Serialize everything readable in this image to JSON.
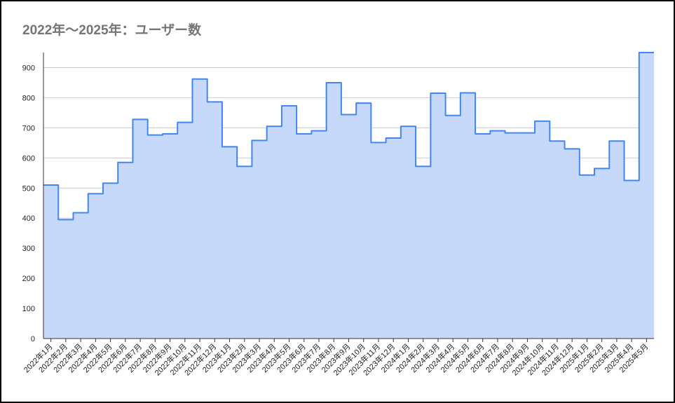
{
  "chart_data": {
    "type": "area",
    "step": "center",
    "title": "2022年～2025年：ユーザー数",
    "xlabel": "",
    "ylabel": "",
    "ylim": [
      0,
      950
    ],
    "yticks": [
      0,
      100,
      200,
      300,
      400,
      500,
      600,
      700,
      800,
      900
    ],
    "grid": true,
    "legend": "none",
    "colors": {
      "line": "#4285f4",
      "fill": "#c6d9fb",
      "grid": "#cccccc",
      "axis": "#333333"
    },
    "categories": [
      "2022年1月",
      "2022年2月",
      "2022年3月",
      "2022年4月",
      "2022年5月",
      "2022年6月",
      "2022年7月",
      "2022年8月",
      "2022年9月",
      "2022年10月",
      "2022年11月",
      "2022年12月",
      "2023年1月",
      "2023年2月",
      "2023年3月",
      "2023年4月",
      "2023年5月",
      "2023年6月",
      "2023年7月",
      "2023年8月",
      "2023年9月",
      "2023年10月",
      "2023年11月",
      "2023年12月",
      "2024年1月",
      "2024年2月",
      "2024年3月",
      "2024年4月",
      "2024年5月",
      "2024年6月",
      "2024年7月",
      "2024年8月",
      "2024年9月",
      "2024年10月",
      "2024年11月",
      "2024年12月",
      "2025年1月",
      "2025年2月",
      "2025年3月",
      "2025年4月",
      "2025年5月"
    ],
    "values": [
      510,
      395,
      418,
      481,
      516,
      585,
      728,
      676,
      680,
      718,
      862,
      786,
      637,
      572,
      658,
      705,
      773,
      680,
      690,
      850,
      744,
      782,
      651,
      666,
      705,
      572,
      815,
      741,
      816,
      680,
      690,
      683,
      683,
      722,
      656,
      630,
      543,
      565,
      656,
      525,
      950
    ]
  }
}
